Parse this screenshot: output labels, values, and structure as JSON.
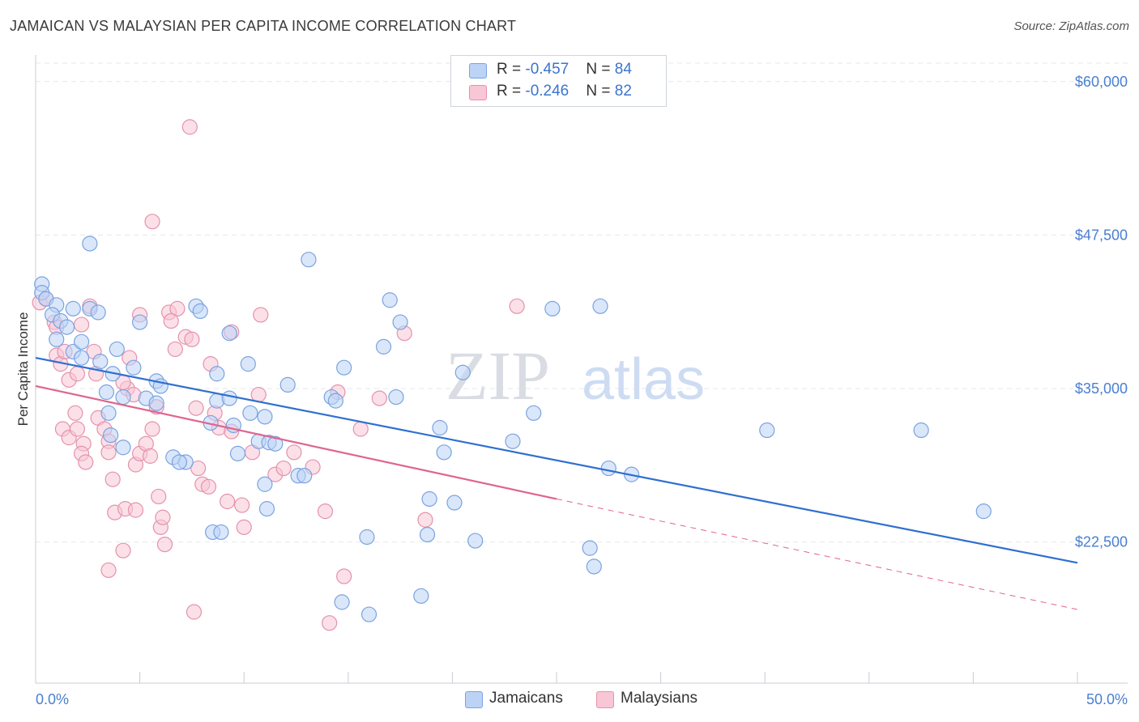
{
  "title": "JAMAICAN VS MALAYSIAN PER CAPITA INCOME CORRELATION CHART",
  "source": "Source: ZipAtlas.com",
  "watermark": {
    "part1": "ZIP",
    "part2": "atlas"
  },
  "legend": {
    "rows": [
      {
        "r_label": "R = ",
        "r_value": "-0.457",
        "n_label": "N = ",
        "n_value": "84"
      },
      {
        "r_label": "R = ",
        "r_value": "-0.246",
        "n_label": "N = ",
        "n_value": "82"
      }
    ]
  },
  "colors": {
    "jamaicans_fill": "#bcd3f5",
    "jamaicans_stroke": "#7aa3e0",
    "jamaicans_line": "#2f6fd0",
    "malaysians_fill": "#f8c6d5",
    "malaysians_stroke": "#e592ad",
    "malaysians_line": "#e0648f"
  },
  "chart_data": {
    "type": "scatter",
    "title": "JAMAICAN VS MALAYSIAN PER CAPITA INCOME CORRELATION CHART",
    "xlabel": "",
    "ylabel": "Per Capita Income",
    "xlim": [
      0,
      50
    ],
    "ylim": [
      11000,
      61500
    ],
    "x_tick_labels": [
      "0.0%",
      "50.0%"
    ],
    "y_ticks": [
      22500,
      35000,
      47500,
      60000
    ],
    "y_tick_labels": [
      "$22,500",
      "$35,000",
      "$47,500",
      "$60,000"
    ],
    "grid": true,
    "legend_position": "top-center",
    "series": [
      {
        "name": "Jamaicans",
        "trend": {
          "x": [
            0,
            50
          ],
          "y": [
            37500,
            20800
          ],
          "style": "solid"
        },
        "points": [
          [
            0.3,
            43.5
          ],
          [
            0.3,
            42.8
          ],
          [
            0.5,
            42.3
          ],
          [
            1.0,
            41.8
          ],
          [
            0.8,
            41.0
          ],
          [
            1.2,
            40.5
          ],
          [
            1.5,
            40.0
          ],
          [
            1.0,
            39.0
          ],
          [
            1.8,
            38.0
          ],
          [
            2.2,
            37.5
          ],
          [
            1.8,
            41.5
          ],
          [
            2.6,
            41.5
          ],
          [
            2.2,
            38.8
          ],
          [
            3.0,
            41.2
          ],
          [
            3.1,
            37.2
          ],
          [
            3.9,
            38.2
          ],
          [
            3.7,
            36.2
          ],
          [
            3.4,
            34.7
          ],
          [
            4.2,
            34.3
          ],
          [
            3.5,
            33.0
          ],
          [
            3.6,
            31.2
          ],
          [
            4.2,
            30.2
          ],
          [
            5.0,
            40.4
          ],
          [
            4.7,
            36.7
          ],
          [
            5.3,
            34.2
          ],
          [
            5.8,
            35.6
          ],
          [
            6.0,
            35.2
          ],
          [
            5.8,
            33.8
          ],
          [
            6.6,
            29.4
          ],
          [
            7.2,
            29.0
          ],
          [
            6.9,
            29.0
          ],
          [
            7.7,
            41.7
          ],
          [
            7.9,
            41.3
          ],
          [
            8.7,
            36.2
          ],
          [
            8.7,
            34.0
          ],
          [
            8.4,
            32.2
          ],
          [
            9.3,
            34.2
          ],
          [
            9.3,
            39.5
          ],
          [
            9.5,
            32.0
          ],
          [
            9.7,
            29.7
          ],
          [
            10.2,
            37.0
          ],
          [
            10.3,
            33.0
          ],
          [
            11.0,
            32.7
          ],
          [
            10.7,
            30.7
          ],
          [
            11.2,
            30.6
          ],
          [
            11.5,
            30.5
          ],
          [
            11.0,
            27.2
          ],
          [
            11.1,
            25.2
          ],
          [
            12.1,
            35.3
          ],
          [
            12.6,
            27.9
          ],
          [
            12.9,
            27.9
          ],
          [
            13.1,
            45.5
          ],
          [
            14.2,
            34.3
          ],
          [
            14.4,
            34.0
          ],
          [
            14.8,
            36.7
          ],
          [
            14.7,
            17.6
          ],
          [
            15.9,
            22.9
          ],
          [
            16.0,
            16.6
          ],
          [
            16.7,
            38.4
          ],
          [
            17.0,
            42.2
          ],
          [
            17.3,
            34.3
          ],
          [
            17.5,
            40.4
          ],
          [
            18.5,
            18.1
          ],
          [
            18.8,
            23.1
          ],
          [
            18.9,
            26.0
          ],
          [
            19.4,
            31.8
          ],
          [
            19.6,
            29.8
          ],
          [
            20.1,
            25.7
          ],
          [
            20.5,
            36.3
          ],
          [
            21.1,
            22.6
          ],
          [
            22.9,
            30.7
          ],
          [
            23.9,
            33.0
          ],
          [
            24.8,
            41.5
          ],
          [
            26.6,
            22.0
          ],
          [
            26.8,
            20.5
          ],
          [
            27.1,
            41.7
          ],
          [
            27.5,
            28.5
          ],
          [
            28.6,
            28.0
          ],
          [
            35.1,
            31.6
          ],
          [
            42.5,
            31.6
          ],
          [
            45.5,
            25.0
          ],
          [
            8.5,
            23.3
          ],
          [
            8.9,
            23.3
          ],
          [
            2.6,
            46.8
          ]
        ]
      },
      {
        "name": "Malaysians",
        "trend": {
          "x": [
            0,
            25
          ],
          "y": [
            35200,
            26000
          ],
          "x_dashed_to": 50,
          "y_dashed_to": 17000,
          "style": "solid-then-dashed"
        },
        "points": [
          [
            0.2,
            42.0
          ],
          [
            0.5,
            42.3
          ],
          [
            0.9,
            40.4
          ],
          [
            1.0,
            40.0
          ],
          [
            1.0,
            37.7
          ],
          [
            1.2,
            37.0
          ],
          [
            1.4,
            38.0
          ],
          [
            1.6,
            35.7
          ],
          [
            1.3,
            31.7
          ],
          [
            1.6,
            31.0
          ],
          [
            2.0,
            31.7
          ],
          [
            2.3,
            30.5
          ],
          [
            2.2,
            29.7
          ],
          [
            2.4,
            29.0
          ],
          [
            2.2,
            40.2
          ],
          [
            2.6,
            41.7
          ],
          [
            2.8,
            38.0
          ],
          [
            2.9,
            36.2
          ],
          [
            3.0,
            32.6
          ],
          [
            3.3,
            31.7
          ],
          [
            3.5,
            30.7
          ],
          [
            3.5,
            29.8
          ],
          [
            3.7,
            27.6
          ],
          [
            3.8,
            24.9
          ],
          [
            3.5,
            20.2
          ],
          [
            4.2,
            21.8
          ],
          [
            4.3,
            25.2
          ],
          [
            4.4,
            35.0
          ],
          [
            4.7,
            34.5
          ],
          [
            4.5,
            37.5
          ],
          [
            4.8,
            28.8
          ],
          [
            4.8,
            25.1
          ],
          [
            5.0,
            29.7
          ],
          [
            5.3,
            30.5
          ],
          [
            5.5,
            29.5
          ],
          [
            5.6,
            31.7
          ],
          [
            5.8,
            33.5
          ],
          [
            5.9,
            26.2
          ],
          [
            6.0,
            23.7
          ],
          [
            6.2,
            22.3
          ],
          [
            6.1,
            24.5
          ],
          [
            6.4,
            41.2
          ],
          [
            6.8,
            41.5
          ],
          [
            6.5,
            40.5
          ],
          [
            6.7,
            38.2
          ],
          [
            7.2,
            39.2
          ],
          [
            7.5,
            39.0
          ],
          [
            7.7,
            33.4
          ],
          [
            7.8,
            28.5
          ],
          [
            8.0,
            27.2
          ],
          [
            8.3,
            27.0
          ],
          [
            8.4,
            37.0
          ],
          [
            8.6,
            33.0
          ],
          [
            8.8,
            31.8
          ],
          [
            9.2,
            25.8
          ],
          [
            9.4,
            39.6
          ],
          [
            10.0,
            23.7
          ],
          [
            9.9,
            25.5
          ],
          [
            10.4,
            29.8
          ],
          [
            10.7,
            34.5
          ],
          [
            10.8,
            41.0
          ],
          [
            11.5,
            28.0
          ],
          [
            11.9,
            28.5
          ],
          [
            13.3,
            28.6
          ],
          [
            13.9,
            25.0
          ],
          [
            14.1,
            15.9
          ],
          [
            14.5,
            34.7
          ],
          [
            14.8,
            19.7
          ],
          [
            15.6,
            31.7
          ],
          [
            16.5,
            34.2
          ],
          [
            17.7,
            39.5
          ],
          [
            18.7,
            24.3
          ],
          [
            23.1,
            41.7
          ],
          [
            7.4,
            56.3
          ],
          [
            5.6,
            48.6
          ],
          [
            12.4,
            29.8
          ],
          [
            4.2,
            35.5
          ],
          [
            2.0,
            36.2
          ],
          [
            1.9,
            33.0
          ],
          [
            7.6,
            16.8
          ],
          [
            9.4,
            31.5
          ],
          [
            5.0,
            41.0
          ]
        ]
      }
    ]
  },
  "bottom_legend": [
    "Jamaicans",
    "Malaysians"
  ]
}
